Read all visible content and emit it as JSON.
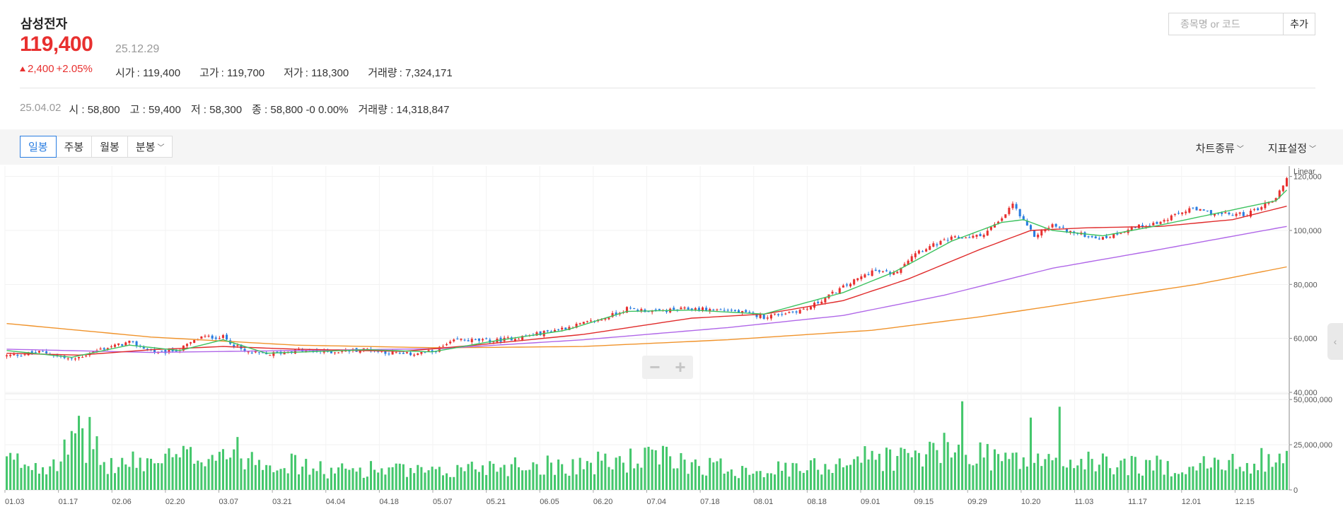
{
  "stock": {
    "name": "삼성전자",
    "price": "119,400",
    "date": "25.12.29",
    "change_amount": "2,400",
    "change_percent": "+2.05%",
    "ohlc": [
      {
        "label": "시가",
        "value": "119,400"
      },
      {
        "label": "고가",
        "value": "119,700"
      },
      {
        "label": "저가",
        "value": "118,300"
      },
      {
        "label": "거래량",
        "value": "7,324,171"
      }
    ]
  },
  "search": {
    "placeholder": "종목명 or 코드",
    "add_label": "추가"
  },
  "hover_info": {
    "date": "25.04.02",
    "open_label": "시",
    "open": "58,800",
    "high_label": "고",
    "high": "59,400",
    "low_label": "저",
    "low": "58,300",
    "close_label": "종",
    "close": "58,800",
    "change": "-0",
    "change_pct": "0.00%",
    "volume_label": "거래량",
    "volume": "14,318,847"
  },
  "toolbar": {
    "periods": [
      "일봉",
      "주봉",
      "월봉",
      "분봉"
    ],
    "active_period": "일봉",
    "chart_type_label": "차트종류",
    "indicator_label": "지표설정"
  },
  "colors": {
    "up": "#e8302f",
    "down": "#2a7de1",
    "ma5": "#3cc25f",
    "ma20": "#e02b2b",
    "ma60": "#b067e8",
    "ma120": "#f0932b",
    "volume": "#44c76c"
  },
  "chart_data": {
    "type": "candlestick",
    "scale_label": "Linear",
    "price_axis": {
      "ticks": [
        40000,
        60000,
        80000,
        100000,
        120000
      ],
      "tick_labels": [
        "40,000",
        "60,000",
        "80,000",
        "100,000",
        "120,000"
      ],
      "range": [
        40000,
        122000
      ]
    },
    "volume_axis": {
      "ticks": [
        0,
        25000000,
        50000000
      ],
      "tick_labels": [
        "0",
        "25,000,000",
        "50,000,000"
      ],
      "range": [
        0,
        52000000
      ]
    },
    "x_tick_labels": [
      "01.03",
      "01.17",
      "02.06",
      "02.20",
      "03.07",
      "03.21",
      "04.04",
      "04.18",
      "05.07",
      "05.21",
      "06.05",
      "06.20",
      "07.04",
      "07.18",
      "08.01",
      "08.18",
      "09.01",
      "09.15",
      "09.29",
      "10.20",
      "11.03",
      "11.17",
      "12.01",
      "12.15"
    ],
    "close_anchors": [
      [
        0,
        53500
      ],
      [
        10,
        55000
      ],
      [
        18,
        52000
      ],
      [
        26,
        56000
      ],
      [
        34,
        58500
      ],
      [
        42,
        54500
      ],
      [
        48,
        56000
      ],
      [
        54,
        60500
      ],
      [
        60,
        60500
      ],
      [
        66,
        55000
      ],
      [
        72,
        54000
      ],
      [
        80,
        55500
      ],
      [
        90,
        55000
      ],
      [
        100,
        56000
      ],
      [
        110,
        54000
      ],
      [
        118,
        55000
      ],
      [
        125,
        59500
      ],
      [
        135,
        59000
      ],
      [
        145,
        61000
      ],
      [
        155,
        64000
      ],
      [
        165,
        67000
      ],
      [
        172,
        71000
      ],
      [
        180,
        70000
      ],
      [
        190,
        71000
      ],
      [
        200,
        70500
      ],
      [
        210,
        68000
      ],
      [
        222,
        71000
      ],
      [
        232,
        79000
      ],
      [
        240,
        85000
      ],
      [
        246,
        84000
      ],
      [
        252,
        92000
      ],
      [
        262,
        97000
      ],
      [
        270,
        98000
      ],
      [
        276,
        104000
      ],
      [
        279,
        110000
      ],
      [
        282,
        103000
      ],
      [
        285,
        98000
      ],
      [
        290,
        102000
      ],
      [
        296,
        99000
      ],
      [
        304,
        97000
      ],
      [
        312,
        101000
      ],
      [
        320,
        103000
      ],
      [
        328,
        108000
      ],
      [
        336,
        106000
      ],
      [
        344,
        106000
      ],
      [
        352,
        112000
      ],
      [
        355,
        119400
      ]
    ],
    "ma5_anchors": [
      [
        0,
        55500
      ],
      [
        18,
        53000
      ],
      [
        34,
        57500
      ],
      [
        48,
        55500
      ],
      [
        60,
        59500
      ],
      [
        72,
        54500
      ],
      [
        100,
        55800
      ],
      [
        118,
        55000
      ],
      [
        135,
        59000
      ],
      [
        155,
        63000
      ],
      [
        172,
        70000
      ],
      [
        190,
        70500
      ],
      [
        210,
        69000
      ],
      [
        232,
        77000
      ],
      [
        246,
        84500
      ],
      [
        262,
        96000
      ],
      [
        276,
        103000
      ],
      [
        282,
        104000
      ],
      [
        290,
        100000
      ],
      [
        304,
        98000
      ],
      [
        320,
        102000
      ],
      [
        336,
        106500
      ],
      [
        352,
        111000
      ],
      [
        355,
        115000
      ]
    ],
    "ma20_anchors": [
      [
        0,
        54500
      ],
      [
        20,
        53800
      ],
      [
        40,
        55800
      ],
      [
        60,
        57000
      ],
      [
        80,
        56000
      ],
      [
        110,
        55200
      ],
      [
        130,
        57500
      ],
      [
        160,
        61500
      ],
      [
        190,
        67500
      ],
      [
        210,
        69000
      ],
      [
        232,
        74000
      ],
      [
        250,
        82000
      ],
      [
        270,
        93000
      ],
      [
        284,
        100000
      ],
      [
        300,
        101000
      ],
      [
        320,
        101500
      ],
      [
        340,
        104000
      ],
      [
        355,
        109000
      ]
    ],
    "ma60_anchors": [
      [
        0,
        56000
      ],
      [
        40,
        54800
      ],
      [
        80,
        55500
      ],
      [
        120,
        56200
      ],
      [
        160,
        59500
      ],
      [
        200,
        64000
      ],
      [
        232,
        68500
      ],
      [
        260,
        76000
      ],
      [
        290,
        86000
      ],
      [
        320,
        93000
      ],
      [
        355,
        101500
      ]
    ],
    "ma120_anchors": [
      [
        0,
        65500
      ],
      [
        40,
        60500
      ],
      [
        80,
        57500
      ],
      [
        120,
        56500
      ],
      [
        160,
        57000
      ],
      [
        200,
        59500
      ],
      [
        240,
        63000
      ],
      [
        270,
        68000
      ],
      [
        300,
        74000
      ],
      [
        330,
        80000
      ],
      [
        355,
        86500
      ]
    ],
    "volume_anchors": [
      [
        0,
        16000000
      ],
      [
        10,
        14000000
      ],
      [
        25,
        30000000
      ],
      [
        26,
        13000000
      ],
      [
        50,
        18000000
      ],
      [
        60,
        22000000
      ],
      [
        70,
        18000000
      ],
      [
        90,
        10000000
      ],
      [
        100,
        12000000
      ],
      [
        120,
        9000000
      ],
      [
        130,
        13000000
      ],
      [
        145,
        14000000
      ],
      [
        160,
        14000000
      ],
      [
        180,
        18000000
      ],
      [
        200,
        12000000
      ],
      [
        220,
        11000000
      ],
      [
        236,
        18000000
      ],
      [
        250,
        18000000
      ],
      [
        260,
        22000000
      ],
      [
        272,
        20000000
      ],
      [
        280,
        16000000
      ],
      [
        300,
        15000000
      ],
      [
        320,
        13000000
      ],
      [
        340,
        14000000
      ],
      [
        355,
        20000000
      ]
    ],
    "n_days": 356
  }
}
